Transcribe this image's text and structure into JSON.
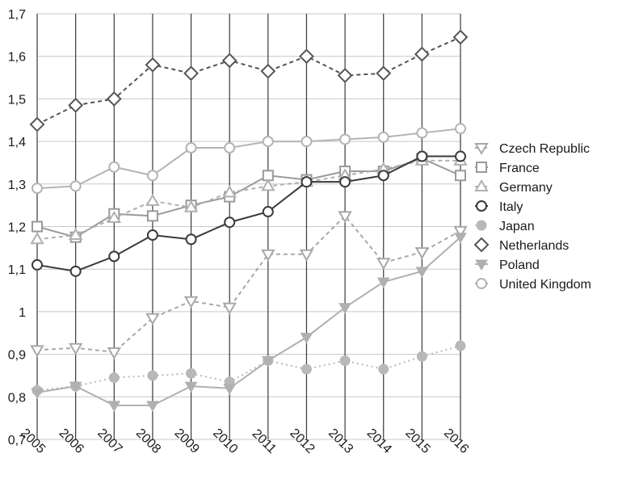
{
  "chart_data": {
    "type": "line",
    "title": "",
    "xlabel": "",
    "ylabel": "",
    "categories": [
      "2005",
      "2006",
      "2007",
      "2008",
      "2009",
      "2010",
      "2011",
      "2012",
      "2013",
      "2014",
      "2015",
      "2016"
    ],
    "y_ticks": [
      "0,7",
      "0,8",
      "0,9",
      "1",
      "1,1",
      "1,2",
      "1,3",
      "1,4",
      "1,5",
      "1,6",
      "1,7"
    ],
    "ylim": [
      0.7,
      1.7
    ],
    "grid": "horizontal and vertical",
    "legend_position": "right",
    "series": [
      {
        "name": "Czech Republic",
        "marker": "triangle-down-open",
        "dash": "dashed",
        "color": "#a8a8a8",
        "values": [
          0.91,
          0.915,
          0.905,
          0.985,
          1.025,
          1.01,
          1.135,
          1.135,
          1.225,
          1.115,
          1.14,
          1.19
        ]
      },
      {
        "name": "France",
        "marker": "square-open",
        "dash": "solid",
        "color": "#9a9a9a",
        "values": [
          1.2,
          1.175,
          1.23,
          1.225,
          1.25,
          1.27,
          1.32,
          1.31,
          1.33,
          1.33,
          1.36,
          1.32
        ]
      },
      {
        "name": "Germany",
        "marker": "triangle-up-open",
        "dash": "dashed",
        "color": "#b0b0b0",
        "values": [
          1.17,
          1.18,
          1.22,
          1.26,
          1.245,
          1.28,
          1.295,
          1.305,
          1.32,
          1.335,
          1.355,
          1.355
        ]
      },
      {
        "name": "Italy",
        "marker": "circle-open",
        "dash": "solid",
        "color": "#3a3a3a",
        "values": [
          1.11,
          1.095,
          1.13,
          1.18,
          1.17,
          1.21,
          1.235,
          1.305,
          1.305,
          1.32,
          1.365,
          1.365
        ]
      },
      {
        "name": "Japan",
        "marker": "circle-filled",
        "dash": "dotted",
        "color": "#b8b8b8",
        "values": [
          0.815,
          0.825,
          0.845,
          0.85,
          0.855,
          0.835,
          0.885,
          0.865,
          0.885,
          0.865,
          0.895,
          0.92
        ]
      },
      {
        "name": "Netherlands",
        "marker": "diamond-open",
        "dash": "dashed",
        "color": "#555555",
        "values": [
          1.44,
          1.485,
          1.5,
          1.58,
          1.56,
          1.59,
          1.565,
          1.6,
          1.555,
          1.56,
          1.605,
          1.645
        ]
      },
      {
        "name": "Poland",
        "marker": "triangle-down-filled",
        "dash": "solid",
        "color": "#b0b0b0",
        "values": [
          0.81,
          0.825,
          0.78,
          0.78,
          0.825,
          0.82,
          0.885,
          0.94,
          1.01,
          1.07,
          1.095,
          1.175
        ]
      },
      {
        "name": "United Kingdom",
        "marker": "circle-open",
        "dash": "solid",
        "color": "#b4b4b4",
        "values": [
          1.29,
          1.295,
          1.34,
          1.32,
          1.385,
          1.385,
          1.4,
          1.4,
          1.405,
          1.41,
          1.42,
          1.43
        ]
      }
    ]
  }
}
